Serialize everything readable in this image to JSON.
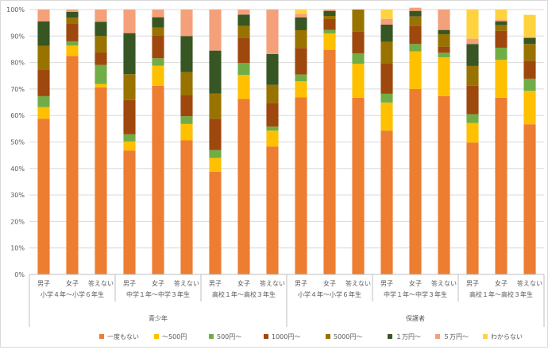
{
  "chart_data": {
    "type": "bar",
    "stacked": "percent",
    "ylim": [
      0,
      100
    ],
    "yticks": [
      "0%",
      "10%",
      "20%",
      "30%",
      "40%",
      "50%",
      "60%",
      "70%",
      "80%",
      "90%",
      "100%"
    ],
    "grid": true,
    "legend_position": "bottom",
    "group_labels": [
      "青少年",
      "保護者"
    ],
    "subgroup_labels": [
      "小学４年〜小学６年生",
      "中学１年〜中学３年生",
      "高校１年〜高校３年生",
      "小学４年〜小学６年生",
      "中学１年〜中学３年生",
      "高校１年〜高校３年生"
    ],
    "categories": [
      "男子",
      "女子",
      "答えない",
      "男子",
      "女子",
      "答えない",
      "男子",
      "女子",
      "答えない",
      "男子",
      "女子",
      "答えない",
      "男子",
      "女子",
      "答えない",
      "男子",
      "女子",
      "答えない"
    ],
    "series": [
      {
        "name": "一度もない",
        "color": "#ED7D31",
        "values": [
          58.8,
          82.5,
          70.6,
          46.8,
          71.2,
          50.6,
          38.8,
          66.3,
          48.3,
          66.9,
          84.8,
          66.7,
          54.3,
          70.0,
          67.3,
          49.8,
          66.7,
          56.7
        ]
      },
      {
        "name": "〜500円",
        "color": "#FFC000",
        "values": [
          4.4,
          3.9,
          1.3,
          3.4,
          7.6,
          6.2,
          5.2,
          9.0,
          6.0,
          6.0,
          6.2,
          12.8,
          10.6,
          14.2,
          14.7,
          7.4,
          14.3,
          12.6
        ]
      },
      {
        "name": "500円〜",
        "color": "#70AD47",
        "values": [
          4.1,
          1.6,
          7.2,
          2.7,
          2.8,
          2.9,
          3.0,
          4.5,
          1.5,
          2.6,
          1.3,
          4.0,
          3.3,
          2.8,
          1.7,
          3.3,
          4.6,
          4.6
        ]
      },
      {
        "name": "1000円〜",
        "color": "#9E480E",
        "values": [
          10.0,
          6.6,
          4.8,
          12.9,
          8.5,
          8.0,
          11.8,
          9.6,
          9.0,
          10.0,
          4.1,
          8.2,
          11.5,
          6.7,
          2.3,
          10.7,
          6.4,
          6.7
        ]
      },
      {
        "name": "5000円〜",
        "color": "#997300",
        "values": [
          9.0,
          2.3,
          6.1,
          9.8,
          3.1,
          8.7,
          9.5,
          4.4,
          6.8,
          6.7,
          1.2,
          8.3,
          8.1,
          3.7,
          4.7,
          7.5,
          2.1,
          6.4
        ]
      },
      {
        "name": "１万円〜",
        "color": "#375623",
        "values": [
          9.2,
          2.2,
          5.4,
          15.5,
          3.9,
          13.6,
          16.2,
          4.3,
          11.6,
          4.8,
          1.9,
          0.0,
          6.5,
          2.1,
          1.6,
          8.3,
          1.4,
          2.3
        ]
      },
      {
        "name": "５万円〜",
        "color": "#F4A07A",
        "values": [
          4.5,
          0.9,
          4.6,
          8.9,
          2.9,
          10.0,
          15.5,
          1.9,
          16.8,
          1.4,
          0.5,
          0.0,
          2.2,
          1.2,
          7.7,
          2.0,
          0.7,
          0.4
        ]
      },
      {
        "name": "わからない",
        "color": "#FFD33F",
        "values": [
          0.0,
          0.0,
          0.0,
          0.0,
          0.0,
          0.0,
          0.0,
          0.0,
          0.0,
          1.6,
          0.0,
          0.0,
          3.5,
          0.0,
          0.0,
          11.0,
          3.8,
          8.3
        ]
      }
    ]
  }
}
